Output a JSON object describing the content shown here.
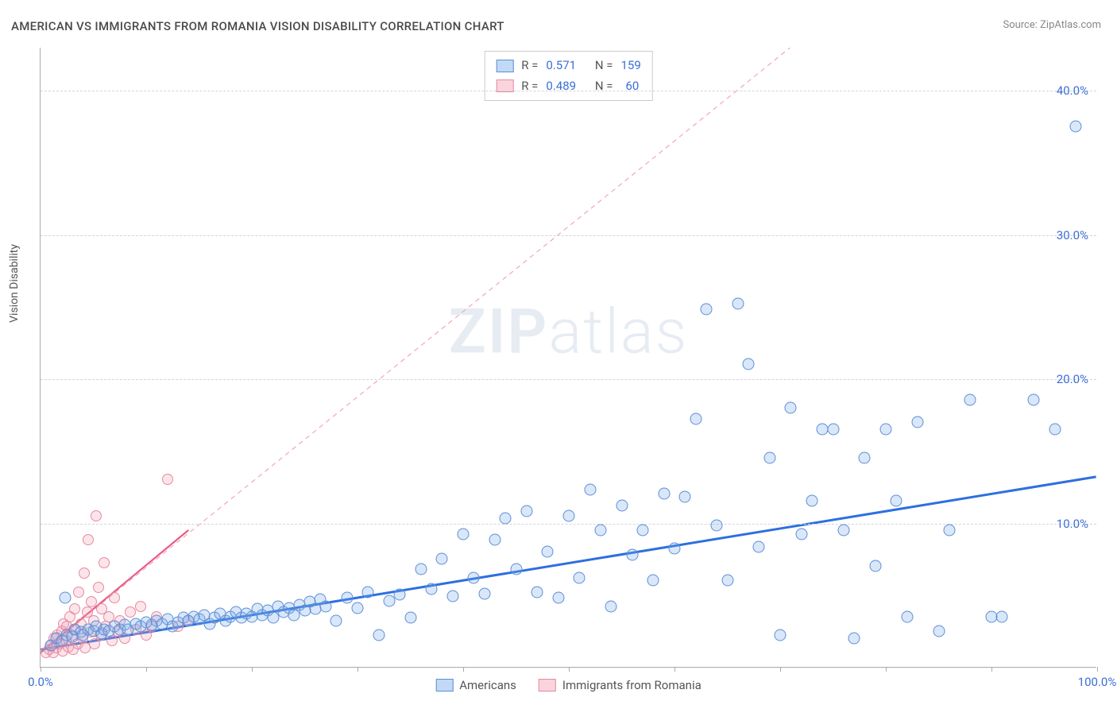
{
  "title": "AMERICAN VS IMMIGRANTS FROM ROMANIA VISION DISABILITY CORRELATION CHART",
  "source": "Source: ZipAtlas.com",
  "ylabel": "Vision Disability",
  "watermark_a": "ZIP",
  "watermark_b": "atlas",
  "chart": {
    "type": "scatter",
    "xlim": [
      0,
      100
    ],
    "ylim": [
      0,
      43
    ],
    "ytick_values": [
      10,
      20,
      30,
      40
    ],
    "ytick_labels": [
      "10.0%",
      "20.0%",
      "30.0%",
      "40.0%"
    ],
    "xtick_values": [
      0,
      10,
      20,
      30,
      40,
      50,
      60,
      70,
      80,
      90,
      100
    ],
    "xtick_labels_shown": {
      "0": "0.0%",
      "100": "100.0%"
    },
    "grid_color": "#d5d5d5",
    "axis_color": "#aaaaaa",
    "background_color": "#ffffff",
    "tick_label_color": "#3b6fd6",
    "series": [
      {
        "key": "americans",
        "label": "Americans",
        "color_fill": "rgba(120,170,235,0.28)",
        "color_stroke": "#5b8fd6",
        "marker_radius": 7.5,
        "trend": {
          "x1": 0,
          "y1": 1.2,
          "x2": 100,
          "y2": 13.2,
          "stroke": "#2d6fe0",
          "width": 3,
          "dash": "none"
        },
        "trend_extrapolate": {
          "x1": 71,
          "y1": 43,
          "stroke": "#f0a8b8",
          "width": 1.2,
          "dash": "6,5"
        }
      },
      {
        "key": "romania",
        "label": "Immigrants from Romania",
        "color_fill": "rgba(245,160,180,0.28)",
        "color_stroke": "#e68aa0",
        "marker_radius": 7,
        "trend": {
          "x1": 0,
          "y1": 1.0,
          "x2": 14,
          "y2": 9.5,
          "stroke": "#e95b86",
          "width": 2.2,
          "dash": "none"
        }
      }
    ],
    "legend_top": [
      {
        "swatch": "blue",
        "r": "0.571",
        "n": "159"
      },
      {
        "swatch": "pink",
        "r": "0.489",
        "n": "60"
      }
    ],
    "legend_top_labels": {
      "r": "R  =",
      "n": "N  ="
    }
  },
  "points_blue": [
    [
      1,
      1.5
    ],
    [
      1.5,
      2
    ],
    [
      2,
      1.8
    ],
    [
      2.3,
      4.8
    ],
    [
      2.5,
      2.2
    ],
    [
      3,
      2.1
    ],
    [
      3.2,
      2.6
    ],
    [
      3.8,
      2.4
    ],
    [
      4,
      2.2
    ],
    [
      4.5,
      2.6
    ],
    [
      5,
      2.5
    ],
    [
      5.3,
      2.8
    ],
    [
      5.8,
      2.3
    ],
    [
      6,
      2.6
    ],
    [
      6.5,
      2.5
    ],
    [
      7,
      2.8
    ],
    [
      7.5,
      2.6
    ],
    [
      8,
      2.9
    ],
    [
      8.3,
      2.6
    ],
    [
      9,
      3
    ],
    [
      9.5,
      2.8
    ],
    [
      10,
      3.1
    ],
    [
      10.5,
      2.9
    ],
    [
      11,
      3.2
    ],
    [
      11.5,
      3
    ],
    [
      12,
      3.3
    ],
    [
      12.5,
      2.8
    ],
    [
      13,
      3.1
    ],
    [
      13.5,
      3.4
    ],
    [
      14,
      3.2
    ],
    [
      14.5,
      3.5
    ],
    [
      15,
      3.3
    ],
    [
      15.5,
      3.6
    ],
    [
      16,
      3
    ],
    [
      16.5,
      3.4
    ],
    [
      17,
      3.7
    ],
    [
      17.5,
      3.2
    ],
    [
      18,
      3.5
    ],
    [
      18.5,
      3.8
    ],
    [
      19,
      3.4
    ],
    [
      19.5,
      3.7
    ],
    [
      20,
      3.5
    ],
    [
      20.5,
      4
    ],
    [
      21,
      3.6
    ],
    [
      21.5,
      3.9
    ],
    [
      22,
      3.4
    ],
    [
      22.5,
      4.2
    ],
    [
      23,
      3.8
    ],
    [
      23.5,
      4.1
    ],
    [
      24,
      3.6
    ],
    [
      24.5,
      4.3
    ],
    [
      25,
      3.9
    ],
    [
      25.5,
      4.5
    ],
    [
      26,
      4
    ],
    [
      26.5,
      4.7
    ],
    [
      27,
      4.2
    ],
    [
      28,
      3.2
    ],
    [
      29,
      4.8
    ],
    [
      30,
      4.1
    ],
    [
      31,
      5.2
    ],
    [
      32,
      2.2
    ],
    [
      33,
      4.6
    ],
    [
      34,
      5
    ],
    [
      35,
      3.4
    ],
    [
      36,
      6.8
    ],
    [
      37,
      5.4
    ],
    [
      38,
      7.5
    ],
    [
      39,
      4.9
    ],
    [
      40,
      9.2
    ],
    [
      41,
      6.2
    ],
    [
      42,
      5.1
    ],
    [
      43,
      8.8
    ],
    [
      44,
      10.3
    ],
    [
      45,
      6.8
    ],
    [
      46,
      10.8
    ],
    [
      47,
      5.2
    ],
    [
      48,
      8
    ],
    [
      49,
      4.8
    ],
    [
      50,
      10.5
    ],
    [
      51,
      6.2
    ],
    [
      52,
      12.3
    ],
    [
      53,
      9.5
    ],
    [
      54,
      4.2
    ],
    [
      55,
      11.2
    ],
    [
      56,
      7.8
    ],
    [
      57,
      9.5
    ],
    [
      58,
      6
    ],
    [
      59,
      12
    ],
    [
      60,
      8.2
    ],
    [
      61,
      11.8
    ],
    [
      62,
      17.2
    ],
    [
      63,
      24.8
    ],
    [
      64,
      9.8
    ],
    [
      65,
      6
    ],
    [
      66,
      25.2
    ],
    [
      67,
      21
    ],
    [
      68,
      8.3
    ],
    [
      69,
      14.5
    ],
    [
      70,
      2.2
    ],
    [
      71,
      18
    ],
    [
      72,
      9.2
    ],
    [
      73,
      11.5
    ],
    [
      74,
      16.5
    ],
    [
      75,
      16.5
    ],
    [
      76,
      9.5
    ],
    [
      77,
      2
    ],
    [
      78,
      14.5
    ],
    [
      79,
      7
    ],
    [
      80,
      16.5
    ],
    [
      81,
      11.5
    ],
    [
      82,
      3.5
    ],
    [
      83,
      17
    ],
    [
      85,
      2.5
    ],
    [
      86,
      9.5
    ],
    [
      88,
      18.5
    ],
    [
      90,
      3.5
    ],
    [
      91,
      3.5
    ],
    [
      94,
      18.5
    ],
    [
      96,
      16.5
    ],
    [
      98,
      37.5
    ]
  ],
  "points_pink": [
    [
      0.5,
      1
    ],
    [
      0.8,
      1.2
    ],
    [
      1,
      1.5
    ],
    [
      1.2,
      1
    ],
    [
      1.3,
      2
    ],
    [
      1.5,
      1.3
    ],
    [
      1.6,
      2.2
    ],
    [
      1.8,
      1.6
    ],
    [
      2,
      2.5
    ],
    [
      2.1,
      1.1
    ],
    [
      2.2,
      3
    ],
    [
      2.4,
      1.8
    ],
    [
      2.5,
      2.8
    ],
    [
      2.6,
      1.4
    ],
    [
      2.8,
      3.5
    ],
    [
      3,
      2.2
    ],
    [
      3.1,
      1.2
    ],
    [
      3.2,
      4
    ],
    [
      3.3,
      2.6
    ],
    [
      3.5,
      1.6
    ],
    [
      3.6,
      5.2
    ],
    [
      3.8,
      3
    ],
    [
      4,
      2
    ],
    [
      4.1,
      6.5
    ],
    [
      4.2,
      1.3
    ],
    [
      4.4,
      3.8
    ],
    [
      4.5,
      8.8
    ],
    [
      4.7,
      2.4
    ],
    [
      4.8,
      4.5
    ],
    [
      5,
      3.2
    ],
    [
      5.1,
      1.6
    ],
    [
      5.3,
      10.5
    ],
    [
      5.5,
      5.5
    ],
    [
      5.7,
      2.2
    ],
    [
      5.8,
      4
    ],
    [
      6,
      7.2
    ],
    [
      6.2,
      2.8
    ],
    [
      6.5,
      3.5
    ],
    [
      6.8,
      1.8
    ],
    [
      7,
      4.8
    ],
    [
      7.3,
      2.5
    ],
    [
      7.5,
      3.2
    ],
    [
      8,
      2
    ],
    [
      8.5,
      3.8
    ],
    [
      9,
      2.6
    ],
    [
      9.5,
      4.2
    ],
    [
      10,
      2.2
    ],
    [
      10.5,
      2.8
    ],
    [
      11,
      3.5
    ],
    [
      12,
      13
    ],
    [
      13,
      2.8
    ],
    [
      14,
      3.2
    ]
  ]
}
